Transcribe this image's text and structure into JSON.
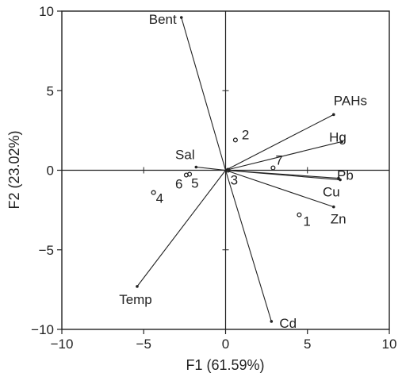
{
  "chart_data": {
    "type": "scatter",
    "xlabel": "F1 (61.59%)",
    "ylabel": "F2 (23.02%)",
    "xlim": [
      -10,
      10
    ],
    "ylim": [
      -10,
      10
    ],
    "xticks": [
      "−10",
      "−5",
      "0",
      "5",
      "10"
    ],
    "yticks": [
      "−10",
      "−5",
      "0",
      "5",
      "10"
    ],
    "grid": false,
    "variables": [
      {
        "name": "Bent",
        "x": -2.7,
        "y": 9.6
      },
      {
        "name": "PAHs",
        "x": 6.6,
        "y": 3.5
      },
      {
        "name": "Hg",
        "x": 7.1,
        "y": 1.8
      },
      {
        "name": "Pb",
        "x": 7.0,
        "y": -0.6
      },
      {
        "name": "Cu",
        "x": 6.9,
        "y": -0.5
      },
      {
        "name": "Zn",
        "x": 6.6,
        "y": -2.3
      },
      {
        "name": "Cd",
        "x": 2.8,
        "y": -9.5
      },
      {
        "name": "Temp",
        "x": -5.4,
        "y": -7.3
      },
      {
        "name": "Sal",
        "x": -1.8,
        "y": 0.2
      }
    ],
    "points": [
      {
        "name": "1",
        "x": 4.5,
        "y": -2.8
      },
      {
        "name": "2",
        "x": 0.6,
        "y": 1.9
      },
      {
        "name": "3",
        "x": 0.15,
        "y": 0.0
      },
      {
        "name": "4",
        "x": -4.4,
        "y": -1.4
      },
      {
        "name": "5",
        "x": -2.2,
        "y": -0.25
      },
      {
        "name": "6",
        "x": -2.4,
        "y": -0.3
      },
      {
        "name": "7",
        "x": 2.9,
        "y": 0.15
      }
    ]
  }
}
